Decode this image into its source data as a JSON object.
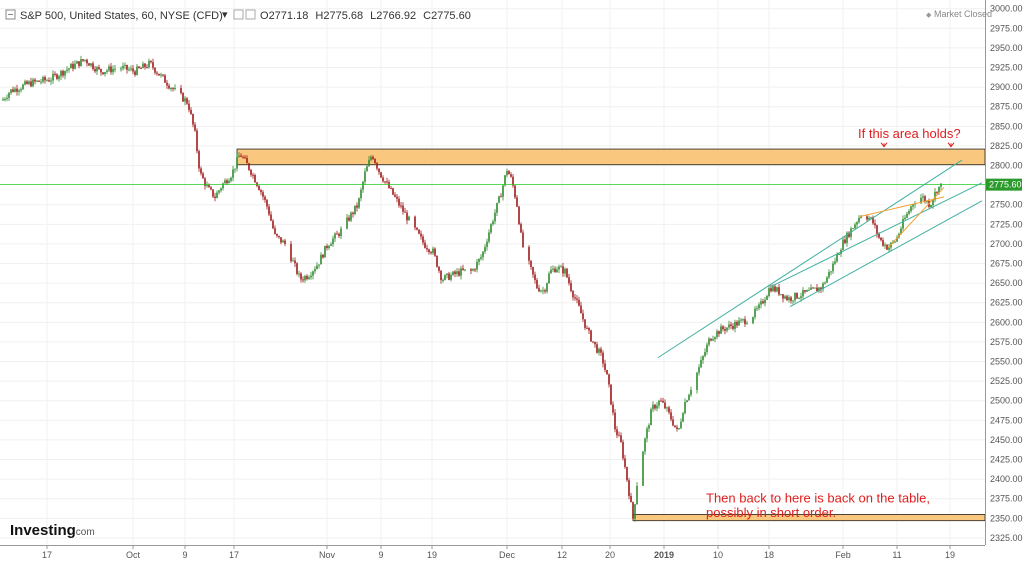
{
  "header": {
    "symbol": "S&P 500, United States, 60, NYSE (CFD)",
    "o_label": "O",
    "o_value": "2771.18",
    "h_label": "H",
    "h_value": "2775.68",
    "l_label": "L",
    "l_value": "2766.92",
    "c_label": "C",
    "c_value": "2775.60",
    "market_status": "Market Closed"
  },
  "logo": {
    "brand": "Investing",
    "suffix": ".com"
  },
  "colors": {
    "up": "#2e8b2e",
    "down": "#a01a1a",
    "zone_fill": "#f9c77e",
    "zone_stroke": "#222222",
    "channel": "#40b0a0",
    "wedge": "#f5a030",
    "current_line": "#22cc22",
    "price_badge": "#2a9a2a",
    "annotation": "#e02020"
  },
  "chart_data": {
    "type": "candlestick",
    "title": "S&P 500, United States, 60, NYSE (CFD)",
    "ylim": [
      2316,
      3006
    ],
    "y_ticks": [
      "2325.00",
      "2350.00",
      "2375.00",
      "2400.00",
      "2425.00",
      "2450.00",
      "2475.00",
      "2500.00",
      "2525.00",
      "2550.00",
      "2575.00",
      "2600.00",
      "2625.00",
      "2650.00",
      "2675.00",
      "2700.00",
      "2725.00",
      "2750.00",
      "2775.60",
      "2800.00",
      "2825.00",
      "2850.00",
      "2875.00",
      "2900.00",
      "2925.00",
      "2950.00",
      "2975.00",
      "3000.00"
    ],
    "current_price": 2775.6,
    "x_labels": [
      "17",
      "Oct",
      "9",
      "17",
      "Nov",
      "9",
      "19",
      "Dec",
      "12",
      "20",
      "2019",
      "10",
      "18",
      "Feb",
      "11",
      "19"
    ],
    "path": [
      [
        0,
        2880
      ],
      [
        10,
        2895
      ],
      [
        30,
        2905
      ],
      [
        50,
        2910
      ],
      [
        70,
        2925
      ],
      [
        85,
        2935
      ],
      [
        100,
        2920
      ],
      [
        120,
        2925
      ],
      [
        135,
        2920
      ],
      [
        150,
        2930
      ],
      [
        160,
        2915
      ],
      [
        175,
        2895
      ],
      [
        188,
        2880
      ],
      [
        195,
        2840
      ],
      [
        200,
        2790
      ],
      [
        208,
        2770
      ],
      [
        215,
        2760
      ],
      [
        222,
        2775
      ],
      [
        232,
        2790
      ],
      [
        240,
        2815
      ],
      [
        250,
        2795
      ],
      [
        260,
        2770
      ],
      [
        268,
        2745
      ],
      [
        275,
        2710
      ],
      [
        285,
        2700
      ],
      [
        292,
        2680
      ],
      [
        300,
        2655
      ],
      [
        308,
        2660
      ],
      [
        318,
        2675
      ],
      [
        328,
        2700
      ],
      [
        340,
        2715
      ],
      [
        350,
        2735
      ],
      [
        358,
        2750
      ],
      [
        365,
        2790
      ],
      [
        372,
        2815
      ],
      [
        380,
        2790
      ],
      [
        392,
        2765
      ],
      [
        404,
        2740
      ],
      [
        414,
        2720
      ],
      [
        424,
        2700
      ],
      [
        433,
        2690
      ],
      [
        442,
        2655
      ],
      [
        452,
        2660
      ],
      [
        462,
        2665
      ],
      [
        472,
        2665
      ],
      [
        482,
        2685
      ],
      [
        490,
        2720
      ],
      [
        500,
        2760
      ],
      [
        507,
        2795
      ],
      [
        512,
        2780
      ],
      [
        517,
        2750
      ],
      [
        522,
        2700
      ],
      [
        530,
        2670
      ],
      [
        537,
        2645
      ],
      [
        544,
        2640
      ],
      [
        550,
        2665
      ],
      [
        557,
        2670
      ],
      [
        565,
        2665
      ],
      [
        572,
        2640
      ],
      [
        580,
        2615
      ],
      [
        587,
        2590
      ],
      [
        595,
        2570
      ],
      [
        602,
        2555
      ],
      [
        608,
        2525
      ],
      [
        615,
        2465
      ],
      [
        621,
        2445
      ],
      [
        627,
        2400
      ],
      [
        633,
        2350
      ],
      [
        638,
        2405
      ],
      [
        645,
        2450
      ],
      [
        652,
        2490
      ],
      [
        660,
        2500
      ],
      [
        666,
        2490
      ],
      [
        672,
        2475
      ],
      [
        678,
        2458
      ],
      [
        684,
        2495
      ],
      [
        692,
        2520
      ],
      [
        700,
        2545
      ],
      [
        710,
        2580
      ],
      [
        720,
        2590
      ],
      [
        730,
        2595
      ],
      [
        740,
        2600
      ],
      [
        750,
        2605
      ],
      [
        760,
        2620
      ],
      [
        770,
        2645
      ],
      [
        778,
        2640
      ],
      [
        788,
        2630
      ],
      [
        800,
        2635
      ],
      [
        812,
        2640
      ],
      [
        822,
        2645
      ],
      [
        832,
        2670
      ],
      [
        842,
        2700
      ],
      [
        852,
        2720
      ],
      [
        862,
        2740
      ],
      [
        872,
        2730
      ],
      [
        880,
        2705
      ],
      [
        888,
        2695
      ],
      [
        896,
        2705
      ],
      [
        904,
        2730
      ],
      [
        914,
        2755
      ],
      [
        922,
        2760
      ],
      [
        930,
        2750
      ],
      [
        937,
        2770
      ],
      [
        942,
        2775
      ]
    ],
    "zones": [
      {
        "low": 2801,
        "high": 2821
      },
      {
        "low": 2347,
        "high": 2355
      }
    ],
    "channel": {
      "upper": [
        [
          658,
          2555
        ],
        [
          962,
          2807
        ]
      ],
      "middle": [
        [
          770,
          2645
        ],
        [
          982,
          2778
        ]
      ],
      "lower": [
        [
          790,
          2620
        ],
        [
          982,
          2755
        ]
      ]
    },
    "wedge": {
      "upper": [
        [
          860,
          2735
        ],
        [
          944,
          2760
        ]
      ],
      "lower": [
        [
          888,
          2695
        ],
        [
          944,
          2772
        ]
      ]
    },
    "annotations": [
      {
        "text": "If this area holds?",
        "x": 858,
        "y": 2840
      },
      {
        "text": "Then back to here is back on the table,",
        "x": 706,
        "y": 2375
      },
      {
        "text": "possibly in short order.",
        "x": 706,
        "y": 2357
      }
    ]
  }
}
